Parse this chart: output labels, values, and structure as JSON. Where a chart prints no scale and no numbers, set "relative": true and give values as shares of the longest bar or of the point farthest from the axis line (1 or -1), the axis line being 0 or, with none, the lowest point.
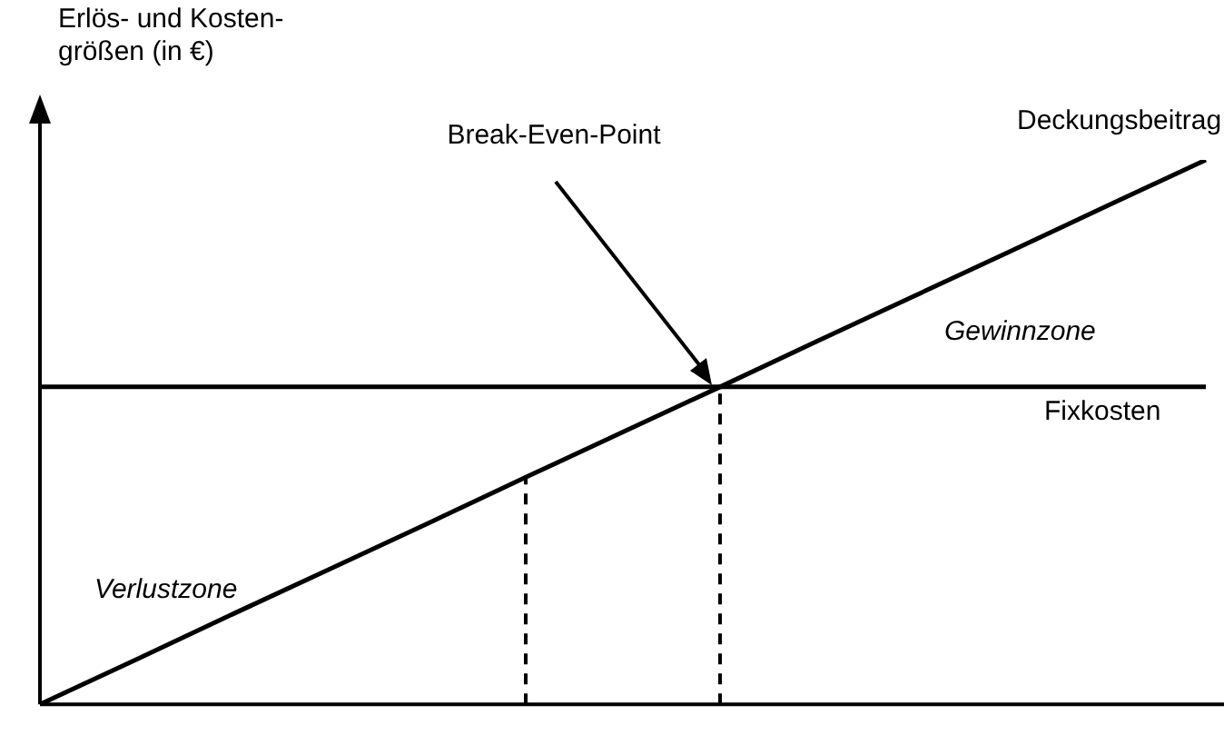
{
  "chart_data": {
    "type": "line",
    "relative": true,
    "ylabel": "Erlös- und Kosten-\ngrößen (in €)",
    "categories": [
      null,
      null,
      null,
      null,
      null,
      null,
      null,
      null,
      null,
      null,
      null,
      null,
      null
    ],
    "series": [
      {
        "name": "Deckungsbeitrag",
        "color": "#000000",
        "values": [
          0,
          0.083,
          0.167,
          0.25,
          0.333,
          0.417,
          0.5,
          0.583,
          0.667,
          0.75,
          0.833,
          0.917,
          1
        ]
      },
      {
        "name": "Fixkosten",
        "color": "#000000",
        "values": [
          0.583,
          0.583,
          0.583,
          0.583,
          0.583,
          0.583,
          0.583,
          0.583,
          0.583,
          0.583,
          0.583,
          0.583,
          0.583
        ]
      }
    ],
    "annotations": [
      "Break-Even-Point",
      "Gewinnzone",
      "Verlustzone"
    ],
    "marker": "none",
    "grid": false,
    "legend": false
  }
}
